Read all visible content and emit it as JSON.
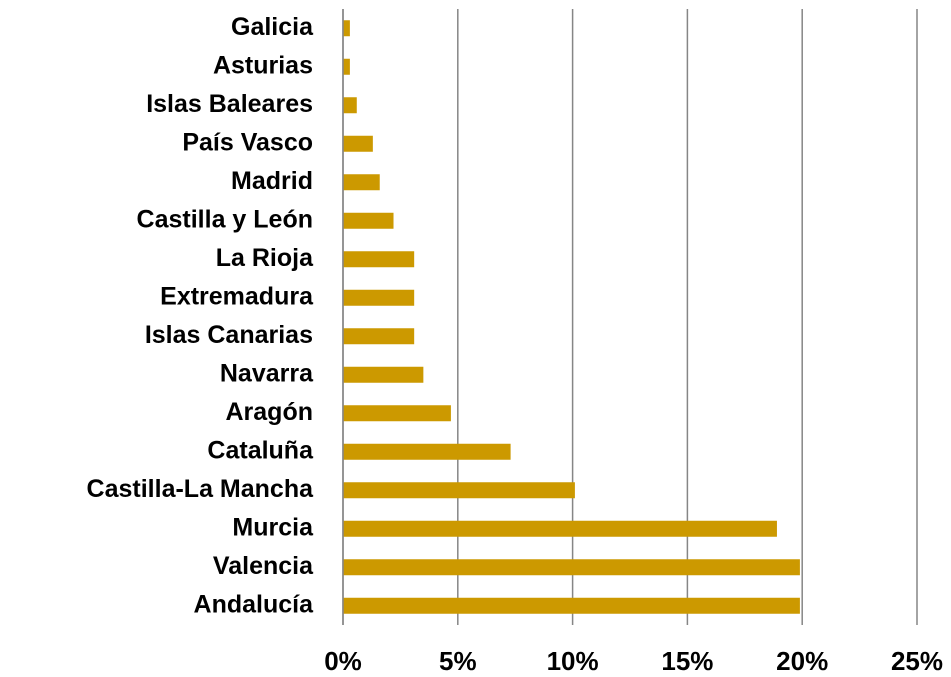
{
  "chart_data": {
    "type": "barh",
    "categories": [
      "Galicia",
      "Asturias",
      "Islas Baleares",
      "País Vasco",
      "Madrid",
      "Castilla y León",
      "La Rioja",
      "Extremadura",
      "Islas Canarias",
      "Navarra",
      "Aragón",
      "Cataluña",
      "Castilla-La Mancha",
      "Murcia",
      "Valencia",
      "Andalucía"
    ],
    "values": [
      0.3,
      0.3,
      0.6,
      1.3,
      1.6,
      2.2,
      3.1,
      3.1,
      3.1,
      3.5,
      4.7,
      7.3,
      10.1,
      18.9,
      19.9,
      19.9
    ],
    "color": "#cc9900",
    "xlim": [
      0,
      25
    ],
    "xticks": [
      {
        "value": 0,
        "label": "0%"
      },
      {
        "value": 5,
        "label": "5%"
      },
      {
        "value": 10,
        "label": "10%"
      },
      {
        "value": 15,
        "label": "15%"
      },
      {
        "value": 20,
        "label": "20%"
      },
      {
        "value": 25,
        "label": "25%"
      }
    ],
    "grid": true
  }
}
